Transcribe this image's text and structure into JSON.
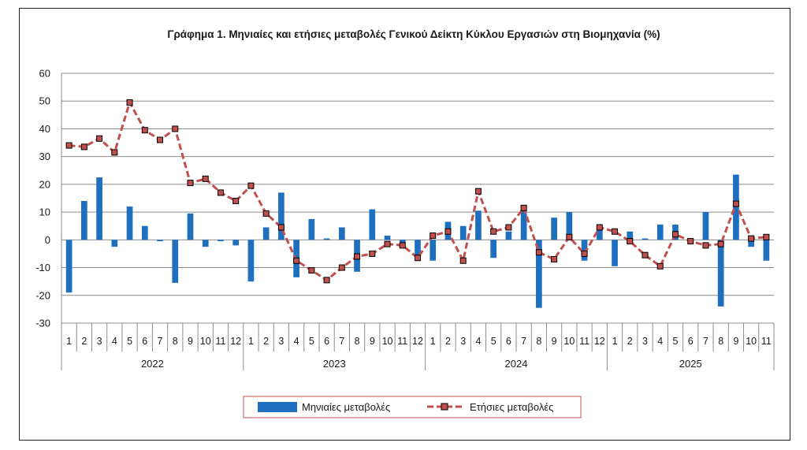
{
  "chart_data": {
    "type": "bar+line",
    "title": "Γράφημα 1.  Μηνιαίες και ετήσιες μεταβολές  Γενικού Δείκτη Κύκλου Εργασιών στη Βιομηχανία  (%)",
    "xlabel": "",
    "ylabel": "",
    "ylim": [
      -30,
      60
    ],
    "yticks": [
      60,
      50,
      40,
      30,
      20,
      10,
      0,
      -10,
      -20,
      -30
    ],
    "grid": true,
    "legend_position": "bottom-center",
    "years": [
      "2022",
      "2023",
      "2024",
      "2025"
    ],
    "month_labels": [
      "1",
      "2",
      "3",
      "4",
      "5",
      "6",
      "7",
      "8",
      "9",
      "10",
      "11",
      "12",
      "1",
      "2",
      "3",
      "4",
      "5",
      "6",
      "7",
      "8",
      "9",
      "10",
      "11",
      "12",
      "1",
      "2",
      "3",
      "4",
      "5",
      "6",
      "7",
      "8",
      "9",
      "10",
      "11",
      "12",
      "1",
      "2",
      "3",
      "4",
      "5",
      "6",
      "7",
      "8",
      "9",
      "10",
      "11"
    ],
    "series": [
      {
        "name": "Μηνιαίες μεταβολές",
        "kind": "bar",
        "color": "#1f6fbf",
        "values": [
          -19,
          14,
          22.5,
          -2.5,
          12,
          5,
          -0.5,
          -15.5,
          9.5,
          -2.5,
          -0.5,
          -2,
          -15,
          4.5,
          17,
          -13.5,
          7.5,
          0.5,
          4.5,
          -11.5,
          11,
          1.5,
          -1.5,
          -6.5,
          -7.5,
          6.5,
          5,
          10.5,
          -6.5,
          3,
          11,
          -24.5,
          8,
          10,
          -7.5,
          4.5,
          -9.5,
          3,
          0.5,
          5.5,
          5.5,
          -0.5,
          10,
          -24,
          23.5,
          -2.5,
          -7.5
        ]
      },
      {
        "name": "Ετήσιες μεταβολές",
        "kind": "line",
        "color": "#c0504d",
        "values": [
          34,
          33.5,
          36.5,
          31.5,
          49.5,
          39.5,
          36,
          40,
          20.5,
          22,
          17,
          14,
          19.5,
          9.5,
          4.5,
          -7.5,
          -11,
          -14.5,
          -10,
          -6,
          -5,
          -1.5,
          -2,
          -6.5,
          1.5,
          3,
          -7.5,
          17.5,
          3,
          4.5,
          11.5,
          -4.5,
          -7,
          1,
          -5,
          4.5,
          3,
          -0.5,
          -5.5,
          -9.5,
          2,
          -0.5,
          -2,
          -1.5,
          13,
          0.5,
          1
        ]
      }
    ]
  }
}
